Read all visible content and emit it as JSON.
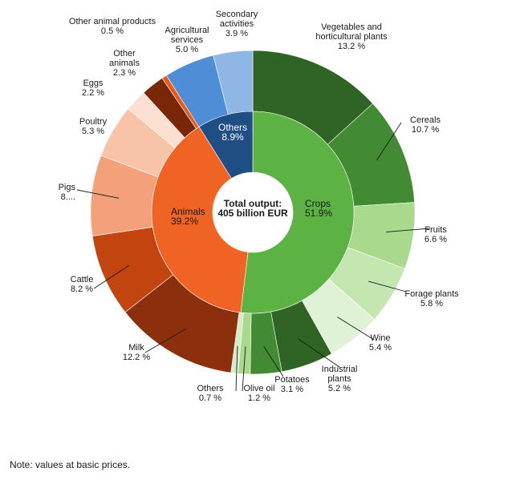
{
  "chart_data": {
    "type": "donut",
    "center_label": [
      "Total output:",
      "405 billion EUR"
    ],
    "inner": [
      {
        "label": "Crops",
        "pct": "51.9%",
        "value": 51.9,
        "color": "#5db244",
        "text_color": "#1a1a1a"
      },
      {
        "label": "Animals",
        "pct": "39.2%",
        "value": 39.2,
        "color": "#ef6424",
        "text_color": "#1a1a1a"
      },
      {
        "label": "Others",
        "pct": "8.9%",
        "value": 8.9,
        "color": "#1f4e85",
        "text_color": "#ffffff"
      }
    ],
    "outer": [
      {
        "label": "Vegetables and\nhorticultural plants",
        "pct": "13.2 %",
        "value": 13.2,
        "color": "#2f6424"
      },
      {
        "label": "Cereals",
        "pct": "10.7 %",
        "value": 10.7,
        "color": "#428a34"
      },
      {
        "label": "Fruits",
        "pct": "6.6 %",
        "value": 6.6,
        "color": "#a8d98c"
      },
      {
        "label": "Forage plants",
        "pct": "5.8 %",
        "value": 5.8,
        "color": "#c4e6b0"
      },
      {
        "label": "Wine",
        "pct": "5.4 %",
        "value": 5.4,
        "color": "#e0f2d6"
      },
      {
        "label": "Industrial\nplants",
        "pct": "5.2 %",
        "value": 5.2,
        "color": "#2f6424"
      },
      {
        "label": "Potatoes",
        "pct": "3.1 %",
        "value": 3.1,
        "color": "#428a34"
      },
      {
        "label": "Olive oil",
        "pct": "1.2 %",
        "value": 1.2,
        "color": "#a8d98c"
      },
      {
        "label": "Others",
        "pct": "0.7 %",
        "value": 0.7,
        "color": "#d5edc6"
      },
      {
        "label": "Milk",
        "pct": "12.2 %",
        "value": 12.2,
        "color": "#8c2f0d"
      },
      {
        "label": "Cattle",
        "pct": "8.2 %",
        "value": 8.2,
        "color": "#c2440f"
      },
      {
        "label": "Pigs",
        "pct": "8....",
        "value": 8.0,
        "color": "#f4a07a"
      },
      {
        "label": "Poultry",
        "pct": "5.3 %",
        "value": 5.3,
        "color": "#f8c4a8"
      },
      {
        "label": "Eggs",
        "pct": "2.2 %",
        "value": 2.2,
        "color": "#fbdfd0"
      },
      {
        "label": "Other\nanimals",
        "pct": "2.3 %",
        "value": 2.3,
        "color": "#7a2608"
      },
      {
        "label": "Other animal products",
        "pct": "0.5 %",
        "value": 0.5,
        "color": "#e85a1c"
      },
      {
        "label": "Agricultural\nservices",
        "pct": "5.0 %",
        "value": 5.0,
        "color": "#4f8ed6"
      },
      {
        "label": "Secondary\nactivities",
        "pct": "3.9 %",
        "value": 3.9,
        "color": "#8fb7e6"
      }
    ]
  },
  "note": "Note: values at basic prices."
}
